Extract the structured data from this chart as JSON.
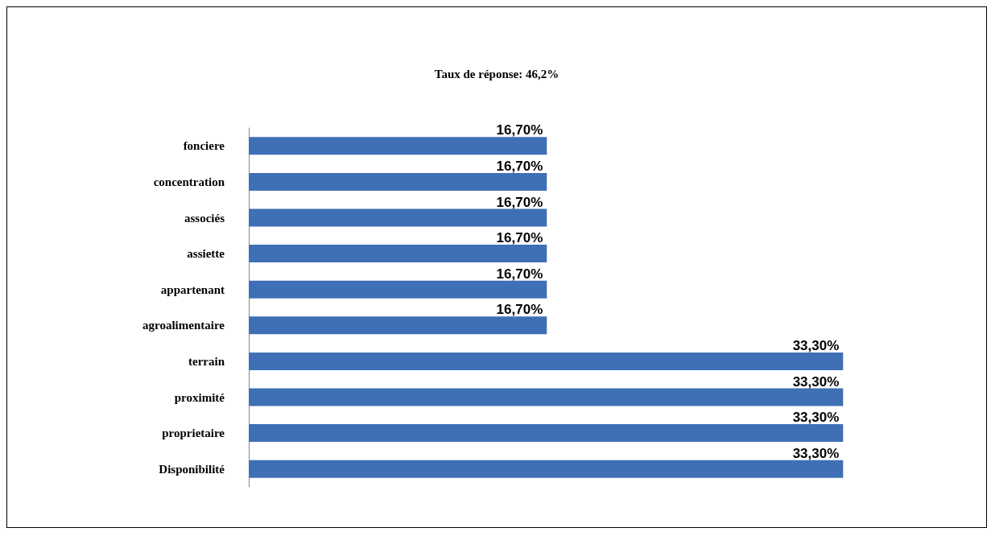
{
  "chart_data": {
    "type": "bar",
    "orientation": "horizontal",
    "title": "Taux de réponse: 46,2%",
    "categories": [
      "fonciere",
      "concentration",
      "associés",
      "assiette",
      "appartenant",
      "agroalimentaire",
      "terrain",
      "proximité",
      "proprietaire",
      "Disponibilité"
    ],
    "values": [
      16.7,
      16.7,
      16.7,
      16.7,
      16.7,
      16.7,
      33.3,
      33.3,
      33.3,
      33.3
    ],
    "value_labels": [
      "16,70%",
      "16,70%",
      "16,70%",
      "16,70%",
      "16,70%",
      "16,70%",
      "33,30%",
      "33,30%",
      "33,30%",
      "33,30%"
    ],
    "color": "#3f6fb5"
  }
}
